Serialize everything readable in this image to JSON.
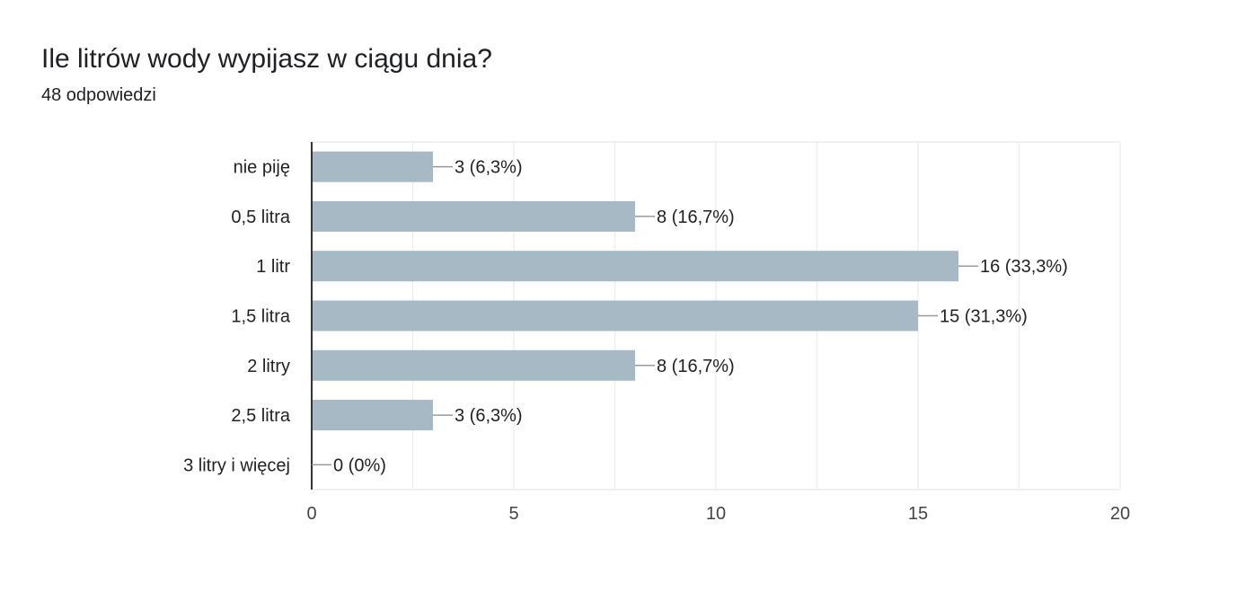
{
  "question": {
    "title": "Ile litrów wody wypijasz w ciągu dnia?",
    "responses": "48 odpowiedzi"
  },
  "colors": {
    "bar": "#a6b9c4",
    "gridline": "#ebebeb",
    "axis": "#333333",
    "leader": "#999999",
    "text": "#222222"
  },
  "chart_data": {
    "type": "bar",
    "orientation": "horizontal",
    "categories": [
      "nie piję",
      "0,5 litra",
      "1 litr",
      "1,5 litra",
      "2 litry",
      "2,5 litra",
      "3 litry i więcej"
    ],
    "values": [
      3,
      8,
      16,
      15,
      8,
      3,
      0
    ],
    "data_labels": [
      "3 (6,3%)",
      "8 (16,7%)",
      "16 (33,3%)",
      "15 (31,3%)",
      "8 (16,7%)",
      "3 (6,3%)",
      "0 (0%)"
    ],
    "xlim": [
      0,
      20
    ],
    "xticks": [
      0,
      5,
      10,
      15,
      20
    ],
    "xtick_labels": [
      "0",
      "5",
      "10",
      "15",
      "20"
    ],
    "grid": true,
    "legend": "none"
  }
}
